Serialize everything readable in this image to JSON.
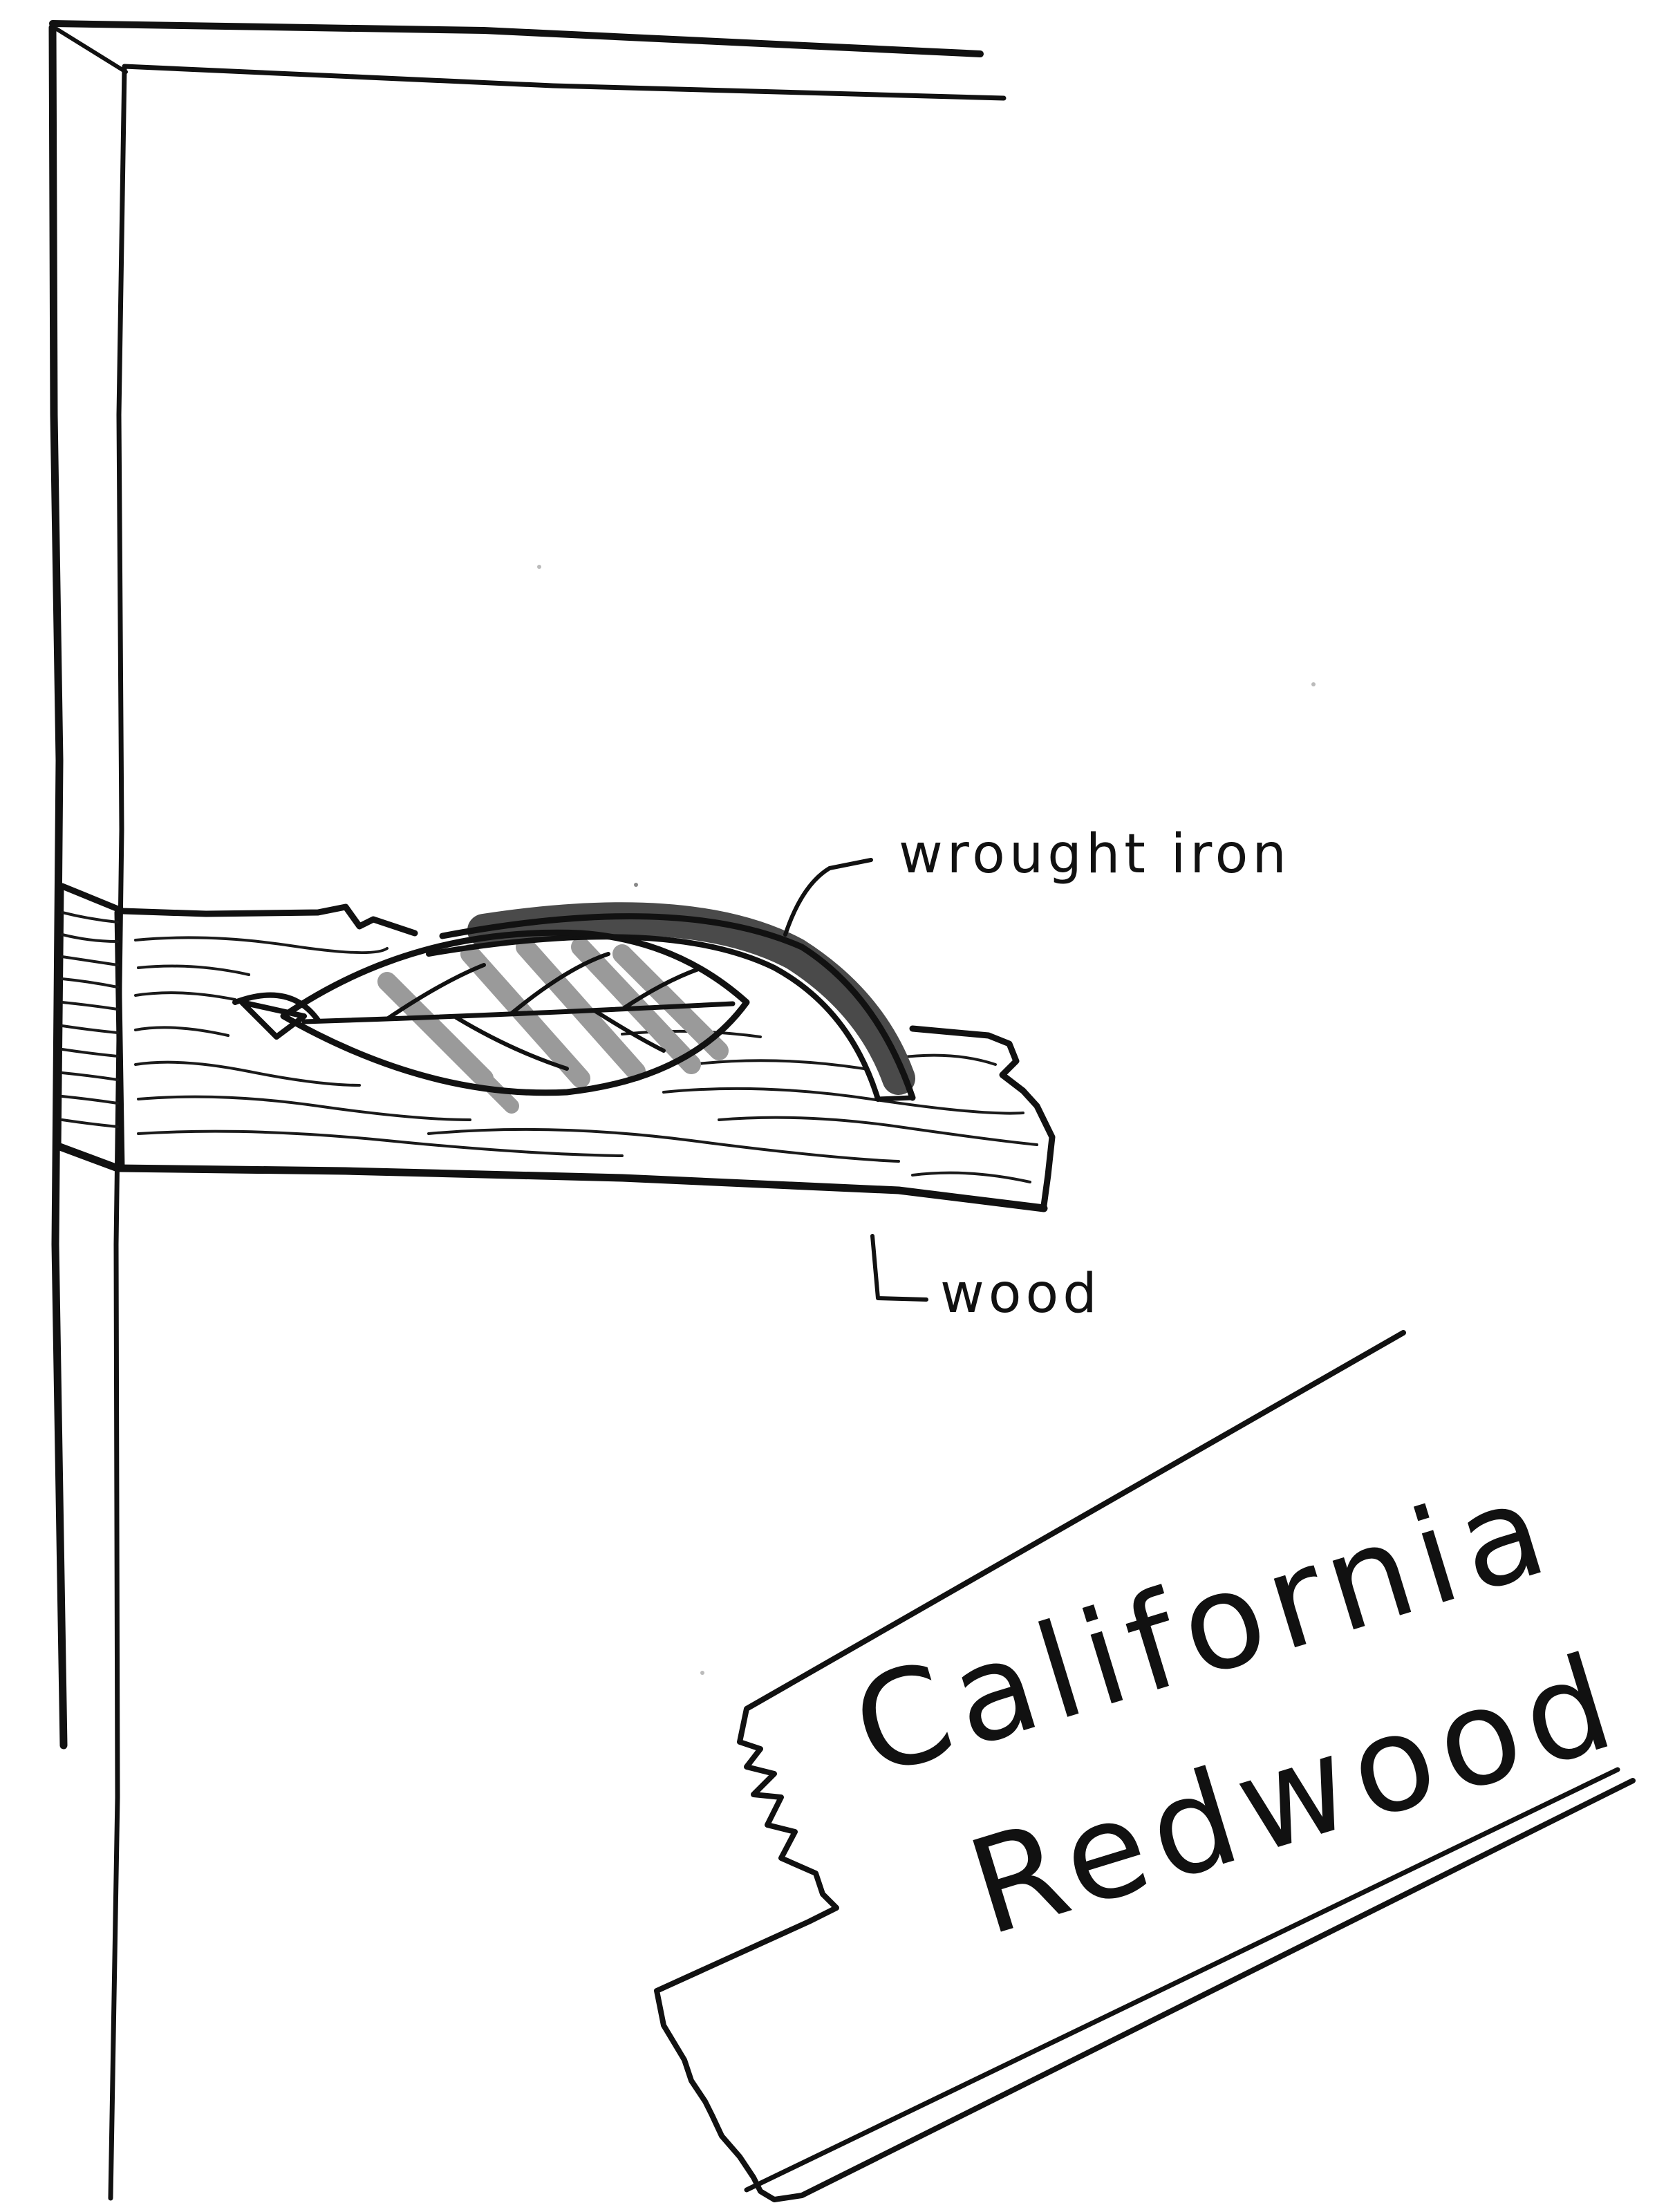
{
  "annotations": {
    "wrought_iron": "wrought iron",
    "wood": "wood"
  },
  "sign": {
    "line1": "California",
    "line2": "Redwood"
  },
  "colors": {
    "ink": "#111111",
    "marker_gray": "#9a9a9a",
    "marker_dark": "#4a4a4a",
    "paper": "#ffffff"
  }
}
